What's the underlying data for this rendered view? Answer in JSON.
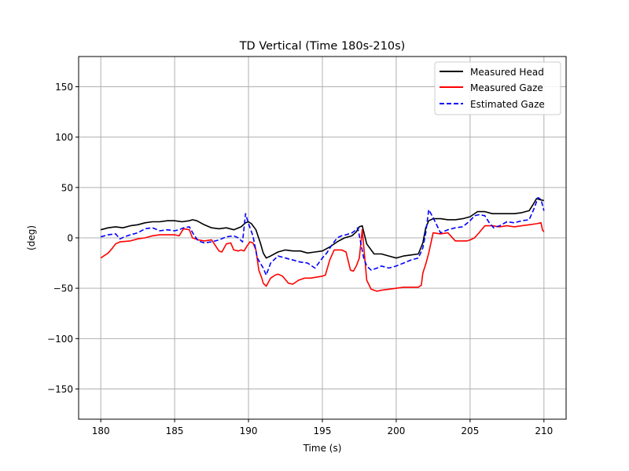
{
  "chart_data": {
    "type": "line",
    "title": "TD Vertical (Time 180s-210s)",
    "xlabel": "Time (s)",
    "ylabel": "(deg)",
    "xlim": [
      178.5,
      211.5
    ],
    "ylim": [
      -180,
      180
    ],
    "xticks": [
      180,
      185,
      190,
      195,
      200,
      205,
      210
    ],
    "yticks": [
      -150,
      -100,
      -50,
      0,
      50,
      100,
      150
    ],
    "ytick_labels": [
      "−150",
      "−100",
      "−50",
      "0",
      "50",
      "100",
      "150"
    ],
    "grid": true,
    "legend_position": "top-right",
    "series": [
      {
        "name": "Measured Head",
        "color": "#000000",
        "dash": "solid",
        "x": [
          180,
          180.5,
          181,
          181.5,
          182,
          182.5,
          183,
          183.5,
          184,
          184.5,
          185,
          185.5,
          186,
          186.2,
          186.5,
          187,
          187.5,
          188,
          188.5,
          189,
          189.5,
          189.8,
          190,
          190.2,
          190.5,
          190.8,
          191,
          191.2,
          191.5,
          192,
          192.5,
          193,
          193.5,
          194,
          194.5,
          195,
          195.5,
          196,
          196.5,
          197,
          197.3,
          197.5,
          197.7,
          198,
          198.5,
          199,
          199.5,
          200,
          200.5,
          201,
          201.5,
          201.8,
          202,
          202.2,
          202.5,
          203,
          203.5,
          204,
          204.5,
          205,
          205.5,
          206,
          206.5,
          207,
          207.5,
          208,
          208.5,
          209,
          209.3,
          209.5,
          209.7,
          210
        ],
        "y": [
          8,
          10,
          11,
          10,
          12,
          13,
          15,
          16,
          16,
          17,
          17,
          16,
          17,
          18,
          17,
          13,
          10,
          9,
          10,
          8,
          11,
          15,
          16,
          14,
          8,
          -5,
          -15,
          -20,
          -18,
          -14,
          -12,
          -13,
          -13,
          -15,
          -14,
          -13,
          -9,
          -4,
          0,
          2,
          6,
          11,
          12,
          -6,
          -16,
          -16,
          -18,
          -20,
          -18,
          -17,
          -16,
          -5,
          10,
          17,
          19,
          19,
          18,
          18,
          19,
          21,
          26,
          26,
          24,
          24,
          24,
          24,
          25,
          27,
          34,
          39,
          38,
          37
        ]
      },
      {
        "name": "Measured Gaze",
        "color": "#ff0000",
        "dash": "solid",
        "x": [
          180,
          180.2,
          180.5,
          180.8,
          181,
          181.3,
          182,
          182.5,
          183,
          183.5,
          184,
          184.5,
          185,
          185.3,
          185.6,
          186,
          186.2,
          186.4,
          186.6,
          187,
          187.5,
          188,
          188.2,
          188.5,
          188.8,
          189,
          189.3,
          189.5,
          189.7,
          189.9,
          190.1,
          190.3,
          190.5,
          190.7,
          190.9,
          191,
          191.2,
          191.5,
          191.8,
          192,
          192.3,
          192.7,
          193,
          193.4,
          193.8,
          194.2,
          194.6,
          195,
          195.2,
          195.5,
          195.8,
          196,
          196.3,
          196.6,
          196.9,
          197.1,
          197.3,
          197.5,
          197.7,
          197.9,
          198,
          198.3,
          198.7,
          199,
          199.5,
          200,
          200.5,
          201,
          201.5,
          201.7,
          201.8,
          202,
          202.2,
          202.5,
          203,
          203.5,
          204,
          204.5,
          204.8,
          205,
          205.3,
          205.6,
          206,
          206.5,
          207,
          207.5,
          208,
          208.5,
          209,
          209.5,
          209.8,
          209.9,
          210
        ],
        "y": [
          -20,
          -18,
          -15,
          -10,
          -6,
          -4,
          -3,
          -1,
          0,
          2,
          3,
          3,
          3,
          2,
          9,
          8,
          0,
          -1,
          -2,
          -3,
          -2,
          -13,
          -14,
          -6,
          -5,
          -12,
          -13,
          -12,
          -13,
          -8,
          -4,
          -5,
          -12,
          -32,
          -40,
          -45,
          -48,
          -40,
          -37,
          -36,
          -38,
          -45,
          -46,
          -42,
          -40,
          -40,
          -39,
          -38,
          -37,
          -22,
          -12,
          -12,
          -12,
          -14,
          -32,
          -33,
          -28,
          -20,
          8,
          -25,
          -42,
          -51,
          -53,
          -52,
          -51,
          -50,
          -49,
          -49,
          -49,
          -47,
          -35,
          -26,
          -15,
          5,
          4,
          5,
          -3,
          -3,
          -3,
          -2,
          0,
          5,
          12,
          12,
          11,
          12,
          11,
          12,
          13,
          14,
          15,
          8,
          6
        ],
        "marker": "none"
      },
      {
        "name": "Estimated Gaze",
        "color": "#0000ff",
        "dash": "dashed",
        "x": [
          180,
          180.5,
          181,
          181.3,
          181.6,
          182,
          182.5,
          183,
          183.5,
          184,
          184.5,
          185,
          185.3,
          185.6,
          186,
          186.3,
          186.6,
          187,
          187.5,
          188,
          188.5,
          189,
          189.3,
          189.6,
          189.8,
          190,
          190.3,
          190.6,
          191,
          191.2,
          191.5,
          192,
          192.5,
          193,
          193.5,
          194,
          194.5,
          195,
          195.3,
          195.6,
          196,
          196.3,
          196.6,
          197,
          197.2,
          197.4,
          197.6,
          197.8,
          198,
          198.3,
          198.7,
          199,
          199.5,
          200,
          200.5,
          201,
          201.5,
          201.8,
          202,
          202.2,
          202.5,
          203,
          203.5,
          204,
          204.5,
          205,
          205.3,
          205.6,
          206,
          206.3,
          206.6,
          207,
          207.5,
          208,
          208.5,
          209,
          209.3,
          209.6,
          209.8,
          210
        ],
        "y": [
          1,
          3,
          4,
          -1,
          1,
          3,
          5,
          9,
          10,
          7,
          8,
          7,
          8,
          10,
          11,
          3,
          -3,
          -5,
          -4,
          -2,
          1,
          2,
          0,
          -4,
          24,
          14,
          2,
          -20,
          -30,
          -37,
          -25,
          -18,
          -20,
          -22,
          -24,
          -25,
          -30,
          -20,
          -15,
          -8,
          0,
          2,
          3,
          5,
          7,
          10,
          -5,
          -20,
          -28,
          -32,
          -30,
          -28,
          -30,
          -28,
          -25,
          -22,
          -20,
          -10,
          5,
          28,
          20,
          5,
          8,
          10,
          11,
          17,
          22,
          23,
          22,
          15,
          10,
          12,
          16,
          15,
          17,
          18,
          28,
          40,
          38,
          27
        ]
      }
    ]
  }
}
